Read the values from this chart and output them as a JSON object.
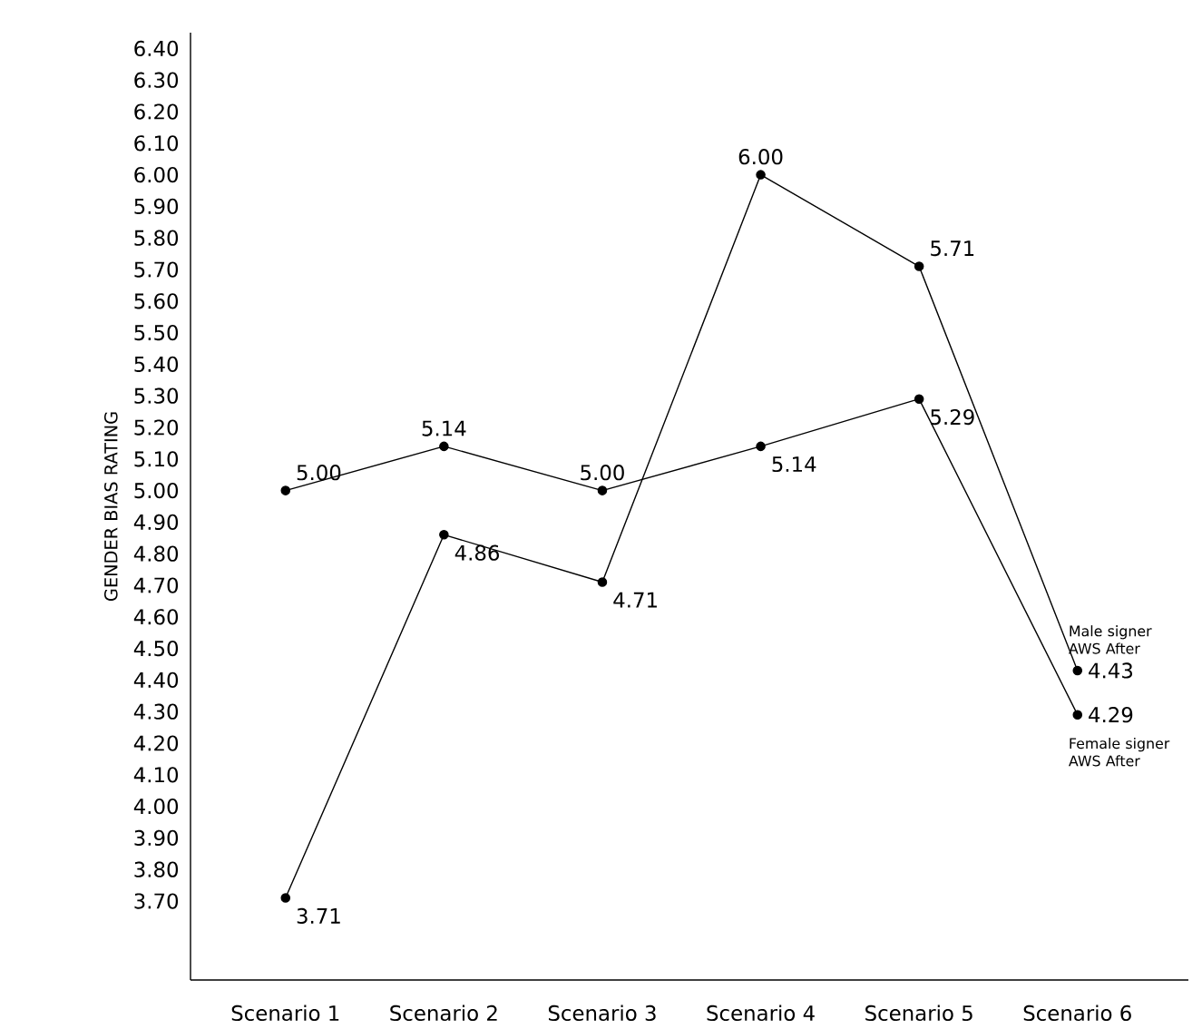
{
  "chart_data": {
    "type": "line",
    "ylabel": "GENDER BIAS RATING",
    "categories": [
      "Scenario 1",
      "Scenario 2",
      "Scenario 3",
      "Scenario 4",
      "Scenario 5",
      "Scenario 6"
    ],
    "series": [
      {
        "name": "Male signer AWS After",
        "color": "#000000",
        "values": [
          3.71,
          4.86,
          4.71,
          6.0,
          5.71,
          4.43
        ],
        "value_labels": [
          "3.71",
          "4.86",
          "4.71",
          "6.00",
          "5.71",
          "4.43"
        ]
      },
      {
        "name": "Female signer AWS After",
        "color": "#000000",
        "values": [
          5.0,
          5.14,
          5.0,
          5.14,
          5.29,
          4.29
        ],
        "value_labels": [
          "5.00",
          "5.14",
          "5.00",
          "5.14",
          "5.29",
          "4.29"
        ]
      }
    ],
    "ylim": [
      3.45,
      6.45
    ],
    "yticks": [
      {
        "value": 3.7,
        "label": "3.70"
      },
      {
        "value": 3.8,
        "label": "3.80"
      },
      {
        "value": 3.9,
        "label": "3.90"
      },
      {
        "value": 4.0,
        "label": "4.00"
      },
      {
        "value": 4.1,
        "label": "4.10"
      },
      {
        "value": 4.2,
        "label": "4.20"
      },
      {
        "value": 4.3,
        "label": "4.30"
      },
      {
        "value": 4.4,
        "label": "4.40"
      },
      {
        "value": 4.5,
        "label": "4.50"
      },
      {
        "value": 4.6,
        "label": "4.60"
      },
      {
        "value": 4.7,
        "label": "4.70"
      },
      {
        "value": 4.8,
        "label": "4.80"
      },
      {
        "value": 4.9,
        "label": "4.90"
      },
      {
        "value": 5.0,
        "label": "5.00"
      },
      {
        "value": 5.1,
        "label": "5.10"
      },
      {
        "value": 5.2,
        "label": "5.20"
      },
      {
        "value": 5.3,
        "label": "5.30"
      },
      {
        "value": 5.4,
        "label": "5.40"
      },
      {
        "value": 5.5,
        "label": "5.50"
      },
      {
        "value": 5.6,
        "label": "5.60"
      },
      {
        "value": 5.7,
        "label": "5.70"
      },
      {
        "value": 5.8,
        "label": "5.80"
      },
      {
        "value": 5.9,
        "label": "5.90"
      },
      {
        "value": 6.0,
        "label": "6.00"
      },
      {
        "value": 6.1,
        "label": "6.10"
      },
      {
        "value": 6.2,
        "label": "6.20"
      },
      {
        "value": 6.3,
        "label": "6.30"
      },
      {
        "value": 6.4,
        "label": "6.40"
      }
    ],
    "marker": "circle",
    "line_style": "solid",
    "grid": false,
    "legend": false
  }
}
